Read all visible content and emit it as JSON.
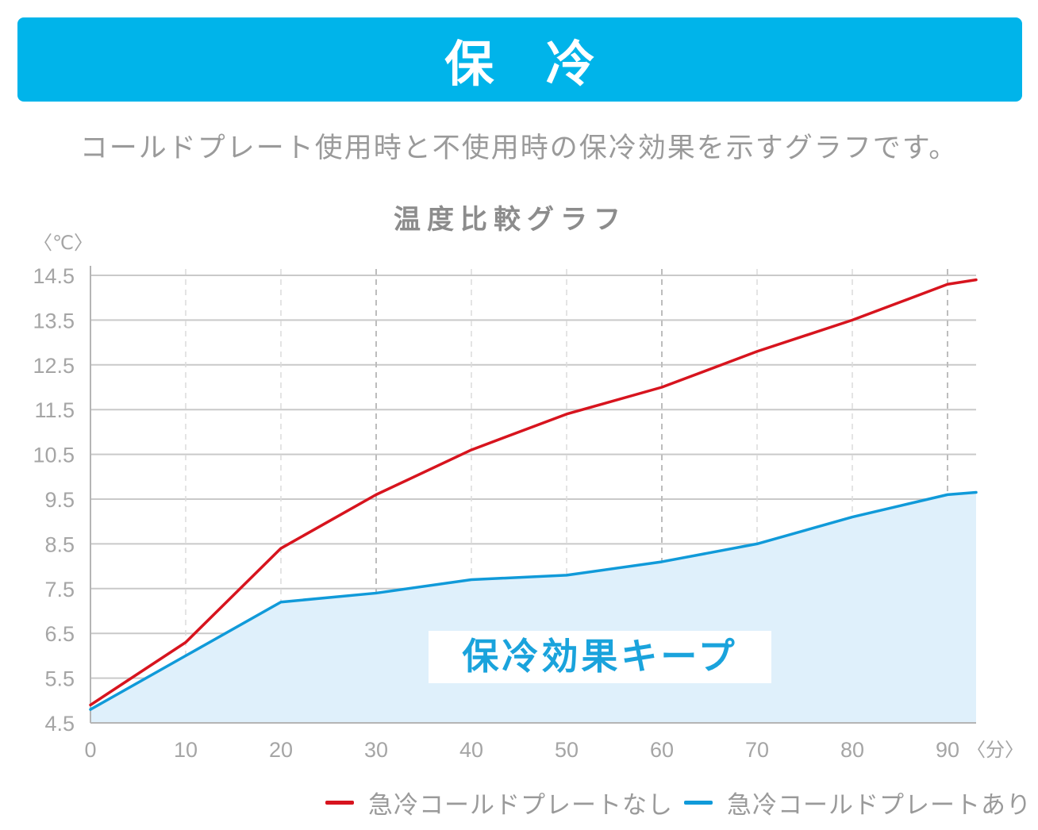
{
  "banner": {
    "title": "保 冷",
    "color": "#00b4ea"
  },
  "subtitle": "コールドプレート使用時と不使用時の保冷効果を示すグラフです。",
  "chart_data": {
    "type": "line",
    "title": "温度比較グラフ",
    "ylabel": "〈℃〉",
    "xlabel": "〈分〉",
    "xlim": [
      0,
      93
    ],
    "ylim": [
      4.5,
      14.5
    ],
    "x_ticks": [
      0,
      10,
      20,
      30,
      40,
      50,
      60,
      70,
      80,
      90
    ],
    "x_tick_labels": [
      "0",
      "10",
      "20",
      "30",
      "40",
      "50",
      "60",
      "70",
      "80",
      "90"
    ],
    "y_ticks": [
      4.5,
      5.5,
      6.5,
      7.5,
      8.5,
      9.5,
      10.5,
      11.5,
      12.5,
      13.5,
      14.5
    ],
    "y_tick_labels": [
      "4.5",
      "5.5",
      "6.5",
      "7.5",
      "8.5",
      "9.5",
      "10.5",
      "11.5",
      "12.5",
      "13.5",
      "14.5"
    ],
    "annotation": "保冷効果キープ",
    "series": [
      {
        "name": "急冷コールドプレートなし",
        "color": "#d7141e",
        "x": [
          0,
          10,
          20,
          30,
          40,
          50,
          60,
          70,
          80,
          90,
          93
        ],
        "values": [
          4.9,
          6.3,
          8.4,
          9.6,
          10.6,
          11.4,
          12.0,
          12.8,
          13.5,
          14.3,
          14.4
        ],
        "fill": false
      },
      {
        "name": "急冷コールドプレートあり",
        "color": "#109ad9",
        "fill_color": "#dff0fb",
        "x": [
          0,
          10,
          20,
          30,
          40,
          50,
          60,
          70,
          80,
          90,
          93
        ],
        "values": [
          4.8,
          6.0,
          7.2,
          7.4,
          7.7,
          7.8,
          8.1,
          8.5,
          9.1,
          9.6,
          9.65
        ],
        "fill": true
      }
    ],
    "legend_position": "bottom-right",
    "grid": true
  }
}
